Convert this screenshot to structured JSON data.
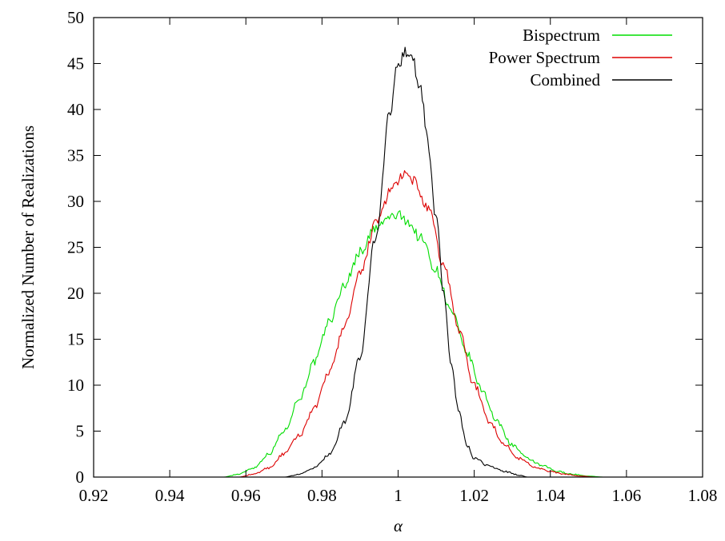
{
  "chart_data": {
    "type": "line",
    "title": "",
    "xlabel": "α",
    "ylabel": "Normalized Number of Realizations",
    "xlim": [
      0.92,
      1.08
    ],
    "ylim": [
      0,
      50
    ],
    "xticks": [
      0.92,
      0.94,
      0.96,
      0.98,
      1.0,
      1.02,
      1.04,
      1.06,
      1.08
    ],
    "xtick_labels": [
      "0.92",
      "0.94",
      "0.96",
      "0.98",
      "1",
      "1.02",
      "1.04",
      "1.06",
      "1.08"
    ],
    "yticks": [
      0,
      5,
      10,
      15,
      20,
      25,
      30,
      35,
      40,
      45,
      50
    ],
    "ytick_labels": [
      "0",
      "5",
      "10",
      "15",
      "20",
      "25",
      "30",
      "35",
      "40",
      "45",
      "50"
    ],
    "legend_position": "top-right",
    "grid": false,
    "series": [
      {
        "name": "Bispectrum",
        "color": "#00dd00",
        "x": [
          0.954,
          0.958,
          0.962,
          0.966,
          0.97,
          0.974,
          0.978,
          0.982,
          0.986,
          0.99,
          0.994,
          0.998,
          1.0,
          1.002,
          1.006,
          1.01,
          1.014,
          1.018,
          1.022,
          1.026,
          1.03,
          1.034,
          1.038,
          1.042,
          1.046,
          1.05,
          1.054
        ],
        "y": [
          0.0,
          0.3,
          1.0,
          2.5,
          5.0,
          8.5,
          12.5,
          17.0,
          21.0,
          24.5,
          27.0,
          28.3,
          28.5,
          28.0,
          26.0,
          22.5,
          18.0,
          13.5,
          9.5,
          6.0,
          3.5,
          2.0,
          1.2,
          0.6,
          0.3,
          0.1,
          0.0
        ]
      },
      {
        "name": "Power Spectrum",
        "color": "#dd0000",
        "x": [
          0.958,
          0.962,
          0.966,
          0.97,
          0.974,
          0.978,
          0.982,
          0.986,
          0.99,
          0.994,
          0.998,
          1.0,
          1.002,
          1.004,
          1.008,
          1.012,
          1.016,
          1.02,
          1.024,
          1.028,
          1.032,
          1.036,
          1.04,
          1.044,
          1.048,
          1.052
        ],
        "y": [
          0.0,
          0.3,
          1.0,
          2.5,
          4.5,
          7.5,
          11.5,
          16.5,
          22.0,
          27.5,
          31.0,
          32.3,
          32.8,
          32.3,
          29.0,
          23.0,
          16.0,
          10.0,
          6.0,
          3.5,
          2.0,
          1.1,
          0.6,
          0.3,
          0.1,
          0.0
        ]
      },
      {
        "name": "Combined",
        "color": "#000000",
        "x": [
          0.97,
          0.974,
          0.978,
          0.982,
          0.986,
          0.99,
          0.994,
          0.998,
          1.0,
          1.002,
          1.004,
          1.006,
          1.008,
          1.01,
          1.012,
          1.014,
          1.016,
          1.018,
          1.02,
          1.024,
          1.028,
          1.032,
          1.034
        ],
        "y": [
          0.0,
          0.3,
          1.0,
          2.5,
          6.0,
          13.0,
          26.0,
          40.0,
          45.0,
          46.5,
          45.0,
          42.0,
          36.0,
          28.0,
          20.0,
          12.0,
          7.0,
          3.5,
          2.0,
          1.2,
          0.6,
          0.2,
          0.0
        ]
      }
    ]
  }
}
